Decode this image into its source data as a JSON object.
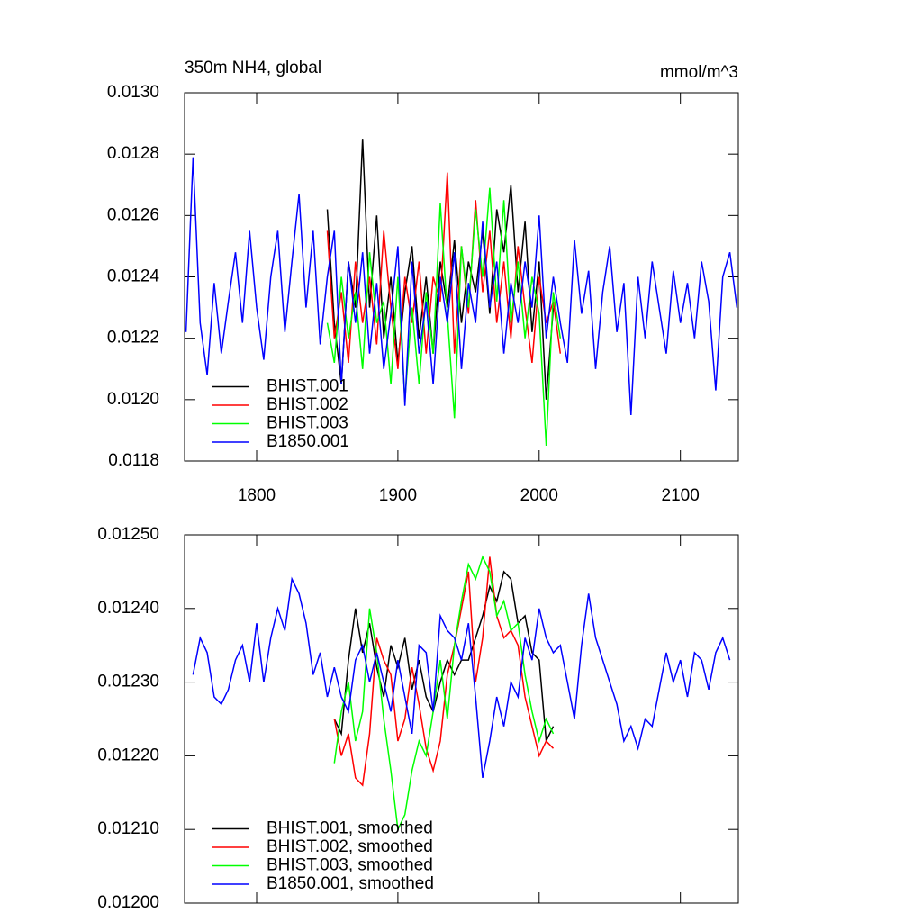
{
  "chart_data": [
    {
      "type": "line",
      "title": "350m NH4, global",
      "units": "mmol/m^3",
      "xlim": [
        1749,
        2141
      ],
      "xticks": [
        1800,
        1900,
        2000,
        2100
      ],
      "xtick_labels": true,
      "ylim": [
        0.0118,
        0.013
      ],
      "yticks": [
        {
          "value": 0.0118,
          "label": "0.0118"
        },
        {
          "value": 0.012,
          "label": "0.0120"
        },
        {
          "value": 0.0122,
          "label": "0.0122"
        },
        {
          "value": 0.0124,
          "label": "0.0124"
        },
        {
          "value": 0.0126,
          "label": "0.0126"
        },
        {
          "value": 0.0128,
          "label": "0.0128"
        },
        {
          "value": 0.013,
          "label": "0.0130"
        }
      ],
      "legend": "lower left",
      "series": [
        {
          "name": "BHIST.001",
          "color": "#000000",
          "x": [
            1850,
            1855,
            1860,
            1865,
            1870,
            1875,
            1880,
            1885,
            1890,
            1895,
            1900,
            1905,
            1910,
            1915,
            1920,
            1925,
            1930,
            1935,
            1940,
            1945,
            1950,
            1955,
            1960,
            1965,
            1970,
            1975,
            1980,
            1985,
            1990,
            1995,
            2000,
            2005,
            2010
          ],
          "values": [
            0.01262,
            0.01225,
            0.01205,
            0.01245,
            0.0123,
            0.01285,
            0.0123,
            0.0126,
            0.0122,
            0.0124,
            0.01212,
            0.01235,
            0.0125,
            0.0122,
            0.0124,
            0.01215,
            0.01245,
            0.0123,
            0.01252,
            0.01225,
            0.01245,
            0.01235,
            0.01255,
            0.01228,
            0.01262,
            0.01248,
            0.0127,
            0.01235,
            0.01258,
            0.01222,
            0.01245,
            0.012,
            0.0123
          ]
        },
        {
          "name": "BHIST.002",
          "color": "#ff0000",
          "x": [
            1850,
            1855,
            1860,
            1865,
            1870,
            1875,
            1880,
            1885,
            1890,
            1895,
            1900,
            1905,
            1910,
            1915,
            1920,
            1925,
            1930,
            1935,
            1940,
            1945,
            1950,
            1955,
            1960,
            1965,
            1970,
            1975,
            1980,
            1985,
            1990,
            1995,
            2000,
            2005,
            2010,
            2015
          ],
          "values": [
            0.01255,
            0.0122,
            0.01235,
            0.01212,
            0.01245,
            0.01225,
            0.0124,
            0.01218,
            0.01255,
            0.0123,
            0.0121,
            0.0124,
            0.01225,
            0.01245,
            0.01215,
            0.0124,
            0.01232,
            0.01274,
            0.01215,
            0.0125,
            0.01228,
            0.01265,
            0.01235,
            0.01255,
            0.01225,
            0.01245,
            0.0122,
            0.0125,
            0.0123,
            0.01212,
            0.0124,
            0.01225,
            0.01232,
            0.01215
          ]
        },
        {
          "name": "BHIST.003",
          "color": "#00ff00",
          "x": [
            1850,
            1855,
            1860,
            1865,
            1870,
            1875,
            1880,
            1885,
            1890,
            1895,
            1900,
            1905,
            1910,
            1915,
            1920,
            1925,
            1930,
            1935,
            1940,
            1945,
            1950,
            1955,
            1960,
            1965,
            1970,
            1975,
            1980,
            1985,
            1990,
            1995,
            2000,
            2005,
            2010,
            2015
          ],
          "values": [
            0.01225,
            0.01212,
            0.0124,
            0.0122,
            0.01235,
            0.0121,
            0.01248,
            0.01225,
            0.01232,
            0.01205,
            0.0124,
            0.012,
            0.0123,
            0.01205,
            0.01235,
            0.01215,
            0.01264,
            0.01228,
            0.01194,
            0.0125,
            0.0123,
            0.01262,
            0.0124,
            0.01269,
            0.01232,
            0.01265,
            0.01225,
            0.01245,
            0.0122,
            0.0124,
            0.01228,
            0.01185,
            0.01235,
            0.0122
          ]
        },
        {
          "name": "B1850.001",
          "color": "#0000ff",
          "x": [
            1750,
            1755,
            1760,
            1765,
            1770,
            1775,
            1780,
            1785,
            1790,
            1795,
            1800,
            1805,
            1810,
            1815,
            1820,
            1825,
            1830,
            1835,
            1840,
            1845,
            1850,
            1855,
            1860,
            1865,
            1870,
            1875,
            1880,
            1885,
            1890,
            1895,
            1900,
            1905,
            1910,
            1915,
            1920,
            1925,
            1930,
            1935,
            1940,
            1945,
            1950,
            1955,
            1960,
            1965,
            1970,
            1975,
            1980,
            1985,
            1990,
            1995,
            2000,
            2005,
            2010,
            2015,
            2020,
            2025,
            2030,
            2035,
            2040,
            2045,
            2050,
            2055,
            2060,
            2065,
            2070,
            2075,
            2080,
            2085,
            2090,
            2095,
            2100,
            2105,
            2110,
            2115,
            2120,
            2125,
            2130,
            2135,
            2140
          ],
          "values": [
            0.01222,
            0.01279,
            0.01225,
            0.01208,
            0.01238,
            0.01215,
            0.01232,
            0.01248,
            0.01225,
            0.01255,
            0.0123,
            0.01213,
            0.0124,
            0.01255,
            0.01222,
            0.01245,
            0.01267,
            0.0123,
            0.01255,
            0.01218,
            0.0124,
            0.01255,
            0.01205,
            0.01245,
            0.01225,
            0.01248,
            0.01215,
            0.01238,
            0.0121,
            0.01228,
            0.0125,
            0.01198,
            0.01245,
            0.01215,
            0.01232,
            0.01205,
            0.0124,
            0.01225,
            0.01248,
            0.0121,
            0.01238,
            0.01225,
            0.01258,
            0.0123,
            0.01245,
            0.01215,
            0.01238,
            0.01225,
            0.01245,
            0.0123,
            0.0126,
            0.0122,
            0.0124,
            0.01225,
            0.01212,
            0.01252,
            0.01228,
            0.01242,
            0.0121,
            0.01235,
            0.0125,
            0.01222,
            0.01238,
            0.01195,
            0.0124,
            0.0122,
            0.01245,
            0.0123,
            0.01215,
            0.01242,
            0.01225,
            0.01238,
            0.0122,
            0.01245,
            0.01232,
            0.01203,
            0.0124,
            0.01248,
            0.0123
          ]
        }
      ]
    },
    {
      "type": "line",
      "xlim": [
        1749,
        2141
      ],
      "xticks": [
        1800,
        1900,
        2000,
        2100
      ],
      "xtick_labels": false,
      "ylim": [
        0.012,
        0.0125
      ],
      "yticks": [
        {
          "value": 0.012,
          "label": "0.01200"
        },
        {
          "value": 0.0121,
          "label": "0.01210"
        },
        {
          "value": 0.0122,
          "label": "0.01220"
        },
        {
          "value": 0.0123,
          "label": "0.01230"
        },
        {
          "value": 0.0124,
          "label": "0.01240"
        },
        {
          "value": 0.0125,
          "label": "0.01250"
        }
      ],
      "legend": "lower left",
      "series": [
        {
          "name": "BHIST.001, smoothed",
          "color": "#000000",
          "x": [
            1855,
            1860,
            1865,
            1870,
            1875,
            1880,
            1885,
            1890,
            1895,
            1900,
            1905,
            1910,
            1915,
            1920,
            1925,
            1930,
            1935,
            1940,
            1945,
            1950,
            1955,
            1960,
            1965,
            1970,
            1975,
            1980,
            1985,
            1990,
            1995,
            2000,
            2005,
            2010
          ],
          "values": [
            0.01225,
            0.01223,
            0.01233,
            0.0124,
            0.01234,
            0.01238,
            0.01232,
            0.01228,
            0.01235,
            0.01232,
            0.01236,
            0.01229,
            0.01233,
            0.01228,
            0.01226,
            0.0123,
            0.01233,
            0.01231,
            0.01233,
            0.01233,
            0.01236,
            0.01239,
            0.01243,
            0.01241,
            0.01245,
            0.01244,
            0.01238,
            0.01239,
            0.01234,
            0.01233,
            0.01222,
            0.01224
          ]
        },
        {
          "name": "BHIST.002, smoothed",
          "color": "#ff0000",
          "x": [
            1855,
            1860,
            1865,
            1870,
            1875,
            1880,
            1885,
            1890,
            1895,
            1900,
            1905,
            1910,
            1915,
            1920,
            1925,
            1930,
            1935,
            1940,
            1945,
            1950,
            1955,
            1960,
            1965,
            1970,
            1975,
            1980,
            1985,
            1990,
            1995,
            2000,
            2005,
            2010
          ],
          "values": [
            0.01225,
            0.0122,
            0.01223,
            0.01217,
            0.01216,
            0.01223,
            0.01236,
            0.01233,
            0.01231,
            0.01222,
            0.01225,
            0.01232,
            0.01227,
            0.01221,
            0.01218,
            0.01222,
            0.01231,
            0.01235,
            0.0124,
            0.01245,
            0.0123,
            0.01236,
            0.01247,
            0.01239,
            0.01236,
            0.01237,
            0.01235,
            0.01228,
            0.01224,
            0.0122,
            0.01222,
            0.01221
          ]
        },
        {
          "name": "BHIST.003, smoothed",
          "color": "#00ff00",
          "x": [
            1855,
            1860,
            1865,
            1870,
            1875,
            1880,
            1885,
            1890,
            1895,
            1900,
            1905,
            1910,
            1915,
            1920,
            1925,
            1930,
            1935,
            1940,
            1945,
            1950,
            1955,
            1960,
            1965,
            1970,
            1975,
            1980,
            1985,
            1990,
            1995,
            2000,
            2005,
            2010
          ],
          "values": [
            0.01219,
            0.01226,
            0.0123,
            0.01222,
            0.01226,
            0.0124,
            0.01234,
            0.01225,
            0.01218,
            0.0121,
            0.01212,
            0.01218,
            0.01222,
            0.0122,
            0.01226,
            0.01233,
            0.01225,
            0.01235,
            0.01241,
            0.01246,
            0.01244,
            0.01247,
            0.01245,
            0.01239,
            0.01241,
            0.01237,
            0.01238,
            0.01231,
            0.01226,
            0.01222,
            0.01225,
            0.01223
          ]
        },
        {
          "name": "B1850.001, smoothed",
          "color": "#0000ff",
          "x": [
            1755,
            1760,
            1765,
            1770,
            1775,
            1780,
            1785,
            1790,
            1795,
            1800,
            1805,
            1810,
            1815,
            1820,
            1825,
            1830,
            1835,
            1840,
            1845,
            1850,
            1855,
            1860,
            1865,
            1870,
            1875,
            1880,
            1885,
            1890,
            1895,
            1900,
            1905,
            1910,
            1915,
            1920,
            1925,
            1930,
            1935,
            1940,
            1945,
            1950,
            1955,
            1960,
            1965,
            1970,
            1975,
            1980,
            1985,
            1990,
            1995,
            2000,
            2005,
            2010,
            2015,
            2020,
            2025,
            2030,
            2035,
            2040,
            2045,
            2050,
            2055,
            2060,
            2065,
            2070,
            2075,
            2080,
            2085,
            2090,
            2095,
            2100,
            2105,
            2110,
            2115,
            2120,
            2125,
            2130,
            2135
          ],
          "values": [
            0.01231,
            0.01236,
            0.01234,
            0.01228,
            0.01227,
            0.01229,
            0.01233,
            0.01235,
            0.0123,
            0.01238,
            0.0123,
            0.01236,
            0.0124,
            0.01237,
            0.01244,
            0.01242,
            0.01238,
            0.01231,
            0.01234,
            0.01228,
            0.01232,
            0.01228,
            0.01226,
            0.01233,
            0.01235,
            0.0123,
            0.01234,
            0.0123,
            0.01226,
            0.01233,
            0.01228,
            0.01223,
            0.01235,
            0.01234,
            0.01226,
            0.01239,
            0.01237,
            0.01236,
            0.01233,
            0.01238,
            0.01228,
            0.01217,
            0.01222,
            0.01228,
            0.01224,
            0.0123,
            0.01228,
            0.01236,
            0.01233,
            0.0124,
            0.01236,
            0.01234,
            0.01235,
            0.0123,
            0.01225,
            0.01235,
            0.01242,
            0.01236,
            0.01233,
            0.0123,
            0.01227,
            0.01222,
            0.01224,
            0.01221,
            0.01225,
            0.01224,
            0.01229,
            0.01234,
            0.0123,
            0.01233,
            0.01228,
            0.01234,
            0.01233,
            0.01229,
            0.01234,
            0.01236,
            0.01233
          ]
        }
      ]
    }
  ]
}
